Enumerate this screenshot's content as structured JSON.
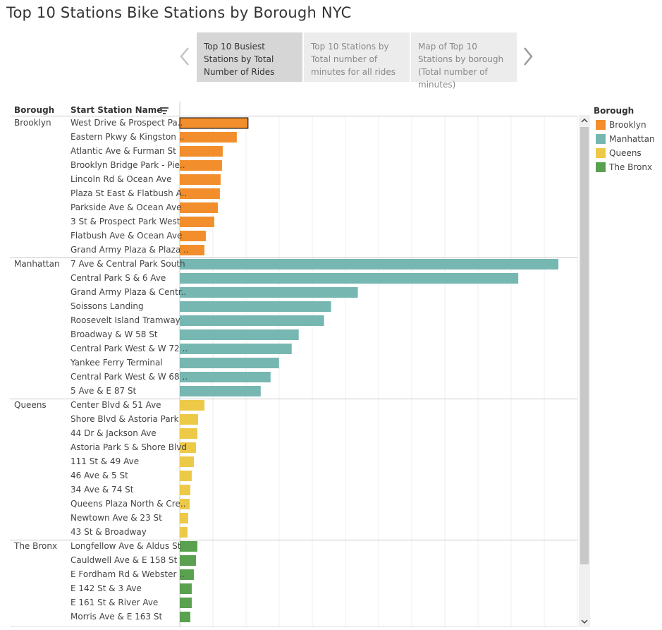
{
  "page": {
    "title": "Top 10 Stations Bike Stations by Borough NYC"
  },
  "story": {
    "prev_icon": "chevron-left-icon",
    "next_icon": "chevron-right-icon",
    "tabs": [
      {
        "label": "Top 10 Busiest Stations by Total Number of Rides",
        "active": true
      },
      {
        "label": "Top 10 Stations by Total number of minutes for all rides",
        "active": false
      },
      {
        "label": "Map of Top 10 Stations by borough (Total number of minutes)",
        "active": false
      }
    ]
  },
  "table": {
    "borough_header": "Borough",
    "station_header": "Start Station Name",
    "sort_icon": "sort-descending-icon"
  },
  "legend": {
    "title": "Borough",
    "items": [
      {
        "label": "Brooklyn",
        "color": "#f28e2b"
      },
      {
        "label": "Manhattan",
        "color": "#76b7b2"
      },
      {
        "label": "Queens",
        "color": "#edc948"
      },
      {
        "label": "The Bronx",
        "color": "#59a14f"
      }
    ]
  },
  "chart_data": {
    "type": "bar",
    "orientation": "horizontal",
    "grid": true,
    "legend_position": "right",
    "groups": [
      {
        "borough": "Brooklyn",
        "color": "#f28e2b",
        "stations": [
          "West Drive & Prospect Pa..",
          "Eastern Pkwy & Kingston ..",
          "Atlantic Ave & Furman St",
          "Brooklyn Bridge Park - Pie..",
          "Lincoln Rd & Ocean Ave",
          "Plaza St East & Flatbush A..",
          "Parkside Ave & Ocean Ave",
          "3 St & Prospect Park West",
          "Flatbush Ave & Ocean Ave",
          "Grand Army Plaza & Plaza .."
        ],
        "values": [
          97,
          81,
          61,
          60,
          58,
          57,
          54,
          49,
          37,
          35
        ]
      },
      {
        "borough": "Manhattan",
        "color": "#76b7b2",
        "stations": [
          "7 Ave & Central Park South",
          "Central Park S & 6 Ave",
          "Grand Army Plaza & Centr..",
          "Soissons Landing",
          "Roosevelt Island Tramway",
          "Broadway & W 58 St",
          "Central Park West & W 72 ..",
          "Yankee Ferry Terminal",
          "Central Park West & W 68 ..",
          "5 Ave & E 87 St"
        ],
        "values": [
          538,
          481,
          253,
          215,
          205,
          169,
          159,
          141,
          129,
          115
        ]
      },
      {
        "borough": "Queens",
        "color": "#edc948",
        "stations": [
          "Center Blvd & 51 Ave",
          "Shore Blvd & Astoria Park",
          "44 Dr & Jackson Ave",
          "Astoria Park S & Shore Blvd",
          "111 St & 49 Ave",
          "46 Ave & 5 St",
          "34 Ave & 74 St",
          "Queens Plaza North & Cre..",
          "Newtown Ave & 23 St",
          "43 St & Broadway"
        ],
        "values": [
          35,
          26,
          25,
          23,
          20,
          17,
          15,
          14,
          12,
          11
        ]
      },
      {
        "borough": "The Bronx",
        "color": "#59a14f",
        "stations": [
          "Longfellow Ave & Aldus St",
          "Cauldwell Ave & E 158 St",
          "E Fordham Rd & Webster ..",
          "E 142 St & 3 Ave",
          "E 161 St & River Ave",
          "Morris Ave & E 163 St"
        ],
        "values": [
          25,
          23,
          20,
          17,
          17,
          15
        ]
      }
    ],
    "xlim": [
      0,
      565
    ]
  }
}
